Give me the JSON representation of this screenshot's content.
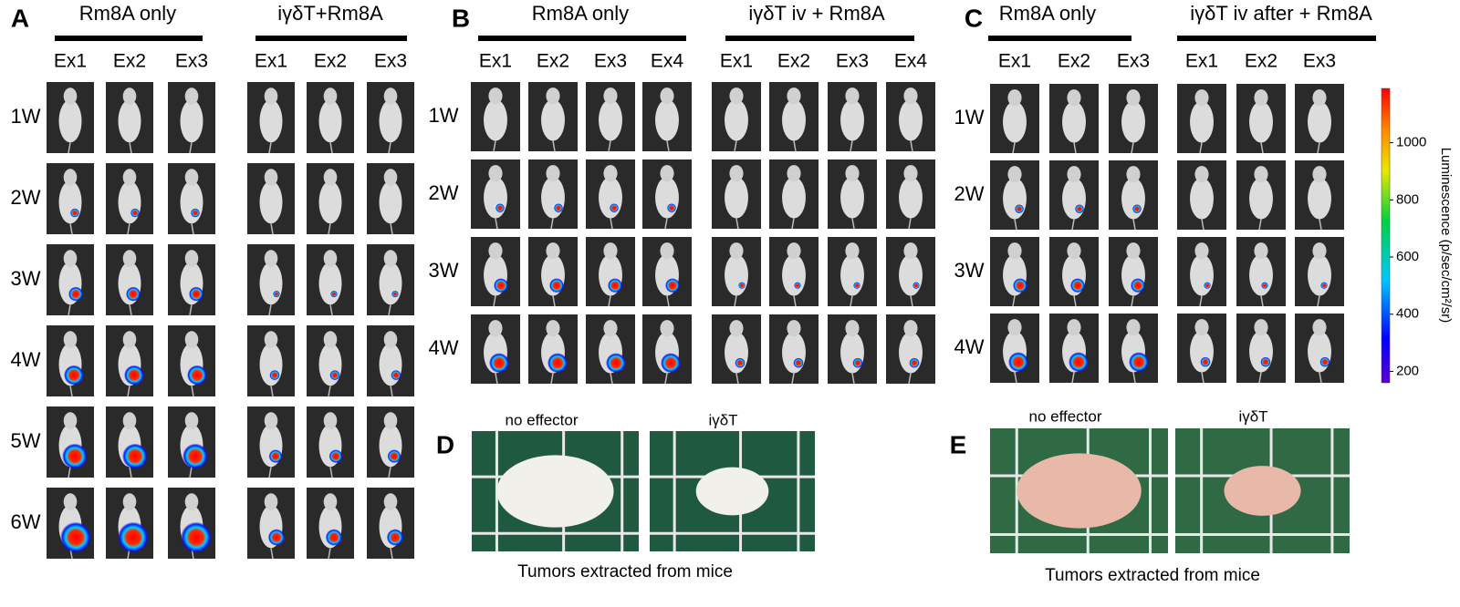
{
  "panels": [
    {
      "label": "A",
      "rows": [
        "1W",
        "2W",
        "3W",
        "4W",
        "5W",
        "6W"
      ],
      "groups": [
        {
          "title": "Rm8A only",
          "columns": [
            "Ex1",
            "Ex2",
            "Ex3"
          ]
        },
        {
          "title": "iγδT+Rm8A",
          "columns": [
            "Ex1",
            "Ex2",
            "Ex3"
          ]
        }
      ]
    },
    {
      "label": "B",
      "rows": [
        "1W",
        "2W",
        "3W",
        "4W"
      ],
      "groups": [
        {
          "title": "Rm8A only",
          "columns": [
            "Ex1",
            "Ex2",
            "Ex3",
            "Ex4"
          ]
        },
        {
          "title": "iγδT iv + Rm8A",
          "columns": [
            "Ex1",
            "Ex2",
            "Ex3",
            "Ex4"
          ]
        }
      ]
    },
    {
      "label": "C",
      "rows": [
        "1W",
        "2W",
        "3W",
        "4W"
      ],
      "groups": [
        {
          "title": "Rm8A only",
          "columns": [
            "Ex1",
            "Ex2",
            "Ex3"
          ]
        },
        {
          "title": "iγδT iv after + Rm8A",
          "columns": [
            "Ex1",
            "Ex2",
            "Ex3"
          ]
        }
      ]
    }
  ],
  "colorbar": {
    "label": "Luminescence  (p/sec/cm²/sr)",
    "range": [
      160,
      1190
    ],
    "ticks": [
      200,
      400,
      600,
      800,
      1000
    ]
  },
  "photos": [
    {
      "label": "D",
      "images": [
        "no effector",
        "iγδT"
      ],
      "caption": "Tumors extracted from mice"
    },
    {
      "label": "E",
      "images": [
        "no effector",
        "iγδT"
      ],
      "caption": "Tumors extracted from mice"
    }
  ]
}
